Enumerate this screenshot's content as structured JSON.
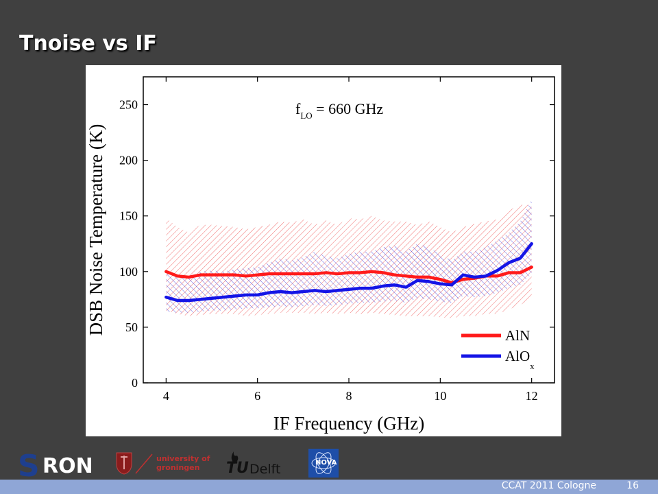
{
  "slide": {
    "title": "Tnoise vs IF",
    "footer_event": "CCAT 2011 Cologne",
    "page_number": "16"
  },
  "logos": {
    "sron": "RON",
    "groningen_line1": "university of",
    "groningen_line2": "groningen",
    "tudelft_tu": "TU",
    "tudelft_delft": "Delft",
    "nova": "NOVA"
  },
  "colors": {
    "aln": "#ff1a1a",
    "alox": "#1414e6",
    "background": "#404040",
    "footer": "#8fa6d6"
  },
  "chart_data": {
    "type": "line",
    "xlabel": "IF Frequency (GHz)",
    "ylabel": "DSB Noise Temperature (K)",
    "xlim": [
      3.5,
      12.5
    ],
    "ylim": [
      0,
      275
    ],
    "xticks": [
      4,
      6,
      8,
      10,
      12
    ],
    "yticks": [
      0,
      50,
      100,
      150,
      200,
      250
    ],
    "annotation": {
      "main": "f",
      "sub": "LO",
      "rest": " = 660 GHz"
    },
    "legend_position": "bottom-right",
    "x": [
      4.0,
      4.25,
      4.5,
      4.75,
      5.0,
      5.25,
      5.5,
      5.75,
      6.0,
      6.25,
      6.5,
      6.75,
      7.0,
      7.25,
      7.5,
      7.75,
      8.0,
      8.25,
      8.5,
      8.75,
      9.0,
      9.25,
      9.5,
      9.75,
      10.0,
      10.25,
      10.5,
      10.75,
      11.0,
      11.25,
      11.5,
      11.75,
      12.0
    ],
    "series": [
      {
        "name": "AlN",
        "values": [
          100,
          96,
          95,
          97,
          97,
          97,
          97,
          96,
          97,
          98,
          98,
          98,
          98,
          98,
          99,
          98,
          99,
          99,
          100,
          99,
          97,
          96,
          95,
          95,
          93,
          90,
          93,
          94,
          96,
          96,
          99,
          99,
          104
        ],
        "band_upper": [
          148,
          140,
          135,
          142,
          142,
          141,
          140,
          138,
          140,
          142,
          145,
          144,
          147,
          142,
          146,
          142,
          148,
          147,
          150,
          146,
          145,
          145,
          142,
          145,
          140,
          135,
          140,
          143,
          145,
          147,
          155,
          160,
          160
        ],
        "band_lower": [
          65,
          62,
          60,
          61,
          62,
          62,
          62,
          60,
          61,
          62,
          63,
          63,
          63,
          62,
          63,
          62,
          63,
          62,
          63,
          62,
          61,
          60,
          60,
          60,
          59,
          58,
          60,
          60,
          62,
          62,
          66,
          70,
          76
        ]
      },
      {
        "name": "AlO",
        "name_sub": "x",
        "values": [
          77,
          74,
          74,
          75,
          76,
          77,
          78,
          79,
          79,
          81,
          82,
          81,
          82,
          83,
          82,
          83,
          84,
          85,
          85,
          87,
          88,
          86,
          92,
          91,
          89,
          88,
          97,
          95,
          96,
          101,
          108,
          112,
          125
        ],
        "band_upper": [
          98,
          95,
          94,
          100,
          101,
          100,
          102,
          103,
          104,
          108,
          112,
          110,
          113,
          118,
          114,
          112,
          116,
          118,
          118,
          122,
          123,
          118,
          125,
          122,
          115,
          110,
          118,
          118,
          122,
          128,
          135,
          145,
          165
        ],
        "band_lower": [
          64,
          63,
          63,
          64,
          65,
          65,
          66,
          67,
          67,
          68,
          69,
          68,
          69,
          70,
          69,
          70,
          71,
          72,
          72,
          73,
          74,
          72,
          76,
          75,
          73,
          72,
          78,
          77,
          78,
          81,
          85,
          88,
          98
        ]
      }
    ]
  }
}
